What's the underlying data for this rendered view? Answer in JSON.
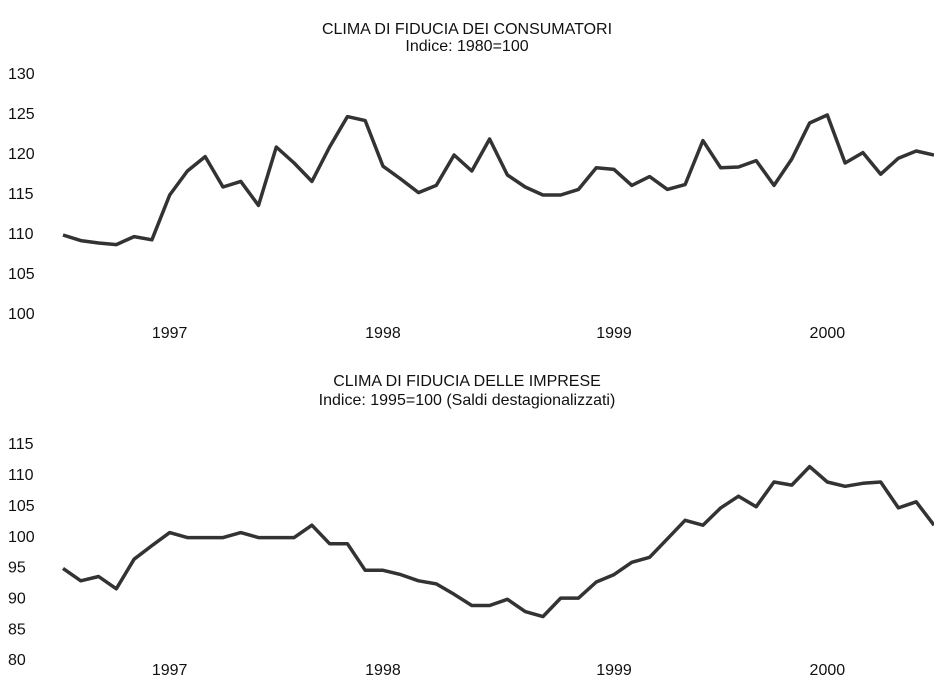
{
  "chart_data": [
    {
      "type": "line",
      "title": "CLIMA DI FIDUCIA DEI CONSUMATORI",
      "subtitle": "Indice: 1980=100",
      "categories": [
        null,
        null,
        null,
        null,
        null,
        null,
        "1997",
        null,
        null,
        null,
        null,
        null,
        null,
        null,
        null,
        null,
        null,
        null,
        "1998",
        null,
        null,
        null,
        null,
        null,
        null,
        null,
        null,
        null,
        null,
        null,
        null,
        "1999",
        null,
        null,
        null,
        null,
        null,
        null,
        null,
        null,
        null,
        null,
        null,
        "2000",
        null,
        null,
        null,
        null,
        null,
        null
      ],
      "series": [
        {
          "name": "Clima di fiducia dei consumatori",
          "color": "#333333",
          "values": [
            110,
            109.3,
            109,
            108.8,
            109.8,
            109.4,
            115,
            118,
            119.8,
            116,
            116.7,
            113.7,
            121,
            119,
            116.7,
            121,
            124.8,
            124.3,
            118.6,
            117,
            115.3,
            116.2,
            120,
            118,
            122,
            117.5,
            116,
            115,
            115,
            115.7,
            118.4,
            118.2,
            116.2,
            117.3,
            115.7,
            116.3,
            121.8,
            118.4,
            118.5,
            119.3,
            116.2,
            119.5,
            124,
            125,
            119,
            120.3,
            117.6,
            119.6,
            120.5,
            120
          ]
        }
      ],
      "ylim": [
        100,
        130
      ],
      "yticks": [
        100,
        105,
        110,
        115,
        120,
        125,
        130
      ],
      "grid": false
    },
    {
      "type": "line",
      "title": "CLIMA DI FIDUCIA DELLE IMPRESE",
      "subtitle": "Indice: 1995=100 (Saldi destagionalizzati)",
      "categories": [
        null,
        null,
        null,
        null,
        null,
        null,
        "1997",
        null,
        null,
        null,
        null,
        null,
        null,
        null,
        null,
        null,
        null,
        null,
        "1998",
        null,
        null,
        null,
        null,
        null,
        null,
        null,
        null,
        null,
        null,
        null,
        null,
        "1999",
        null,
        null,
        null,
        null,
        null,
        null,
        null,
        null,
        null,
        null,
        null,
        "2000",
        null,
        null,
        null,
        null,
        null,
        null
      ],
      "series": [
        {
          "name": "Clima di fiducia delle imprese",
          "color": "#333333",
          "values": [
            95,
            93,
            93.7,
            91.7,
            96.5,
            98.7,
            100.8,
            100,
            100,
            100,
            100.8,
            100,
            100,
            100,
            102,
            99,
            99,
            94.7,
            94.7,
            94,
            93,
            92.5,
            90.8,
            89,
            89,
            90,
            88,
            87.2,
            90.2,
            90.2,
            92.8,
            94,
            96,
            96.8,
            99.8,
            102.8,
            102,
            104.8,
            106.7,
            105,
            109,
            108.5,
            111.5,
            109,
            108.3,
            108.8,
            109,
            104.8,
            105.8,
            102
          ]
        }
      ],
      "ylim": [
        80,
        115
      ],
      "yticks": [
        80,
        85,
        90,
        95,
        100,
        105,
        110,
        115
      ],
      "grid": false
    }
  ]
}
